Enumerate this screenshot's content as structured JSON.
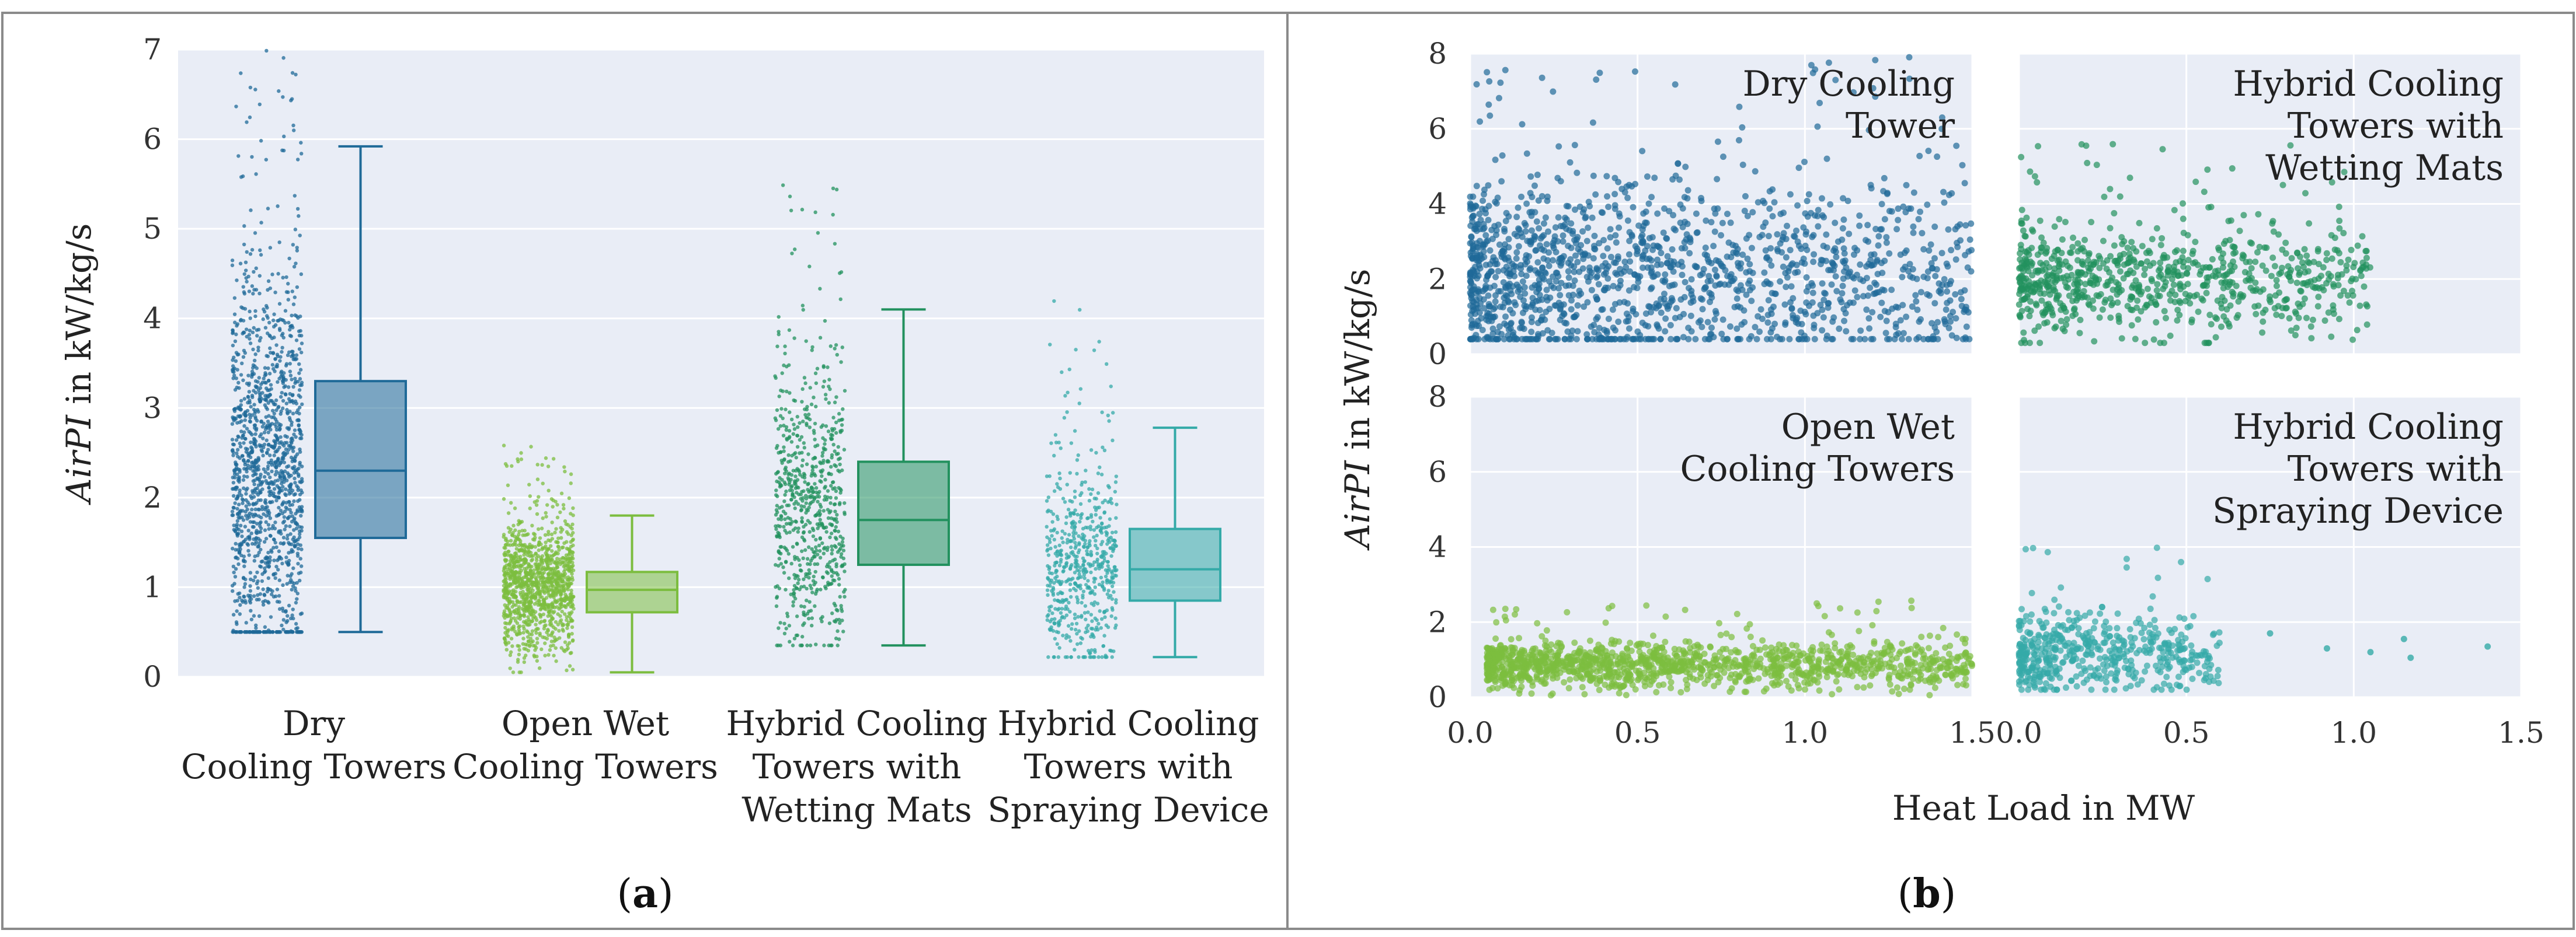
{
  "colors": {
    "background": "#e9edf6",
    "grid": "#ffffff",
    "dry": "#1f6a98",
    "open_wet": "#7cbd3f",
    "wetting_mats": "#22915e",
    "spraying": "#34aaa8",
    "border": "#8a8a8a"
  },
  "panels": {
    "a_label": "(a)",
    "b_label": "(b)",
    "a_letter": "a",
    "b_letter": "b"
  },
  "chart_data": [
    {
      "type": "box",
      "panel": "a",
      "ylabel": "AirPI in kW/kg/s",
      "ylabel_italic": "AirPI",
      "ylabel_rest": " in kW/kg/s",
      "ylim": [
        0,
        7
      ],
      "yticks": [
        "0",
        "1",
        "2",
        "3",
        "4",
        "5",
        "6",
        "7"
      ],
      "grid": true,
      "categories": [
        {
          "lines": [
            "Dry",
            "Cooling Towers"
          ],
          "color": "dry",
          "box": {
            "whisker_low": 0.5,
            "q1": 1.55,
            "median": 2.3,
            "q3": 3.3,
            "whisker_high": 5.92
          },
          "strip": {
            "min": 0.5,
            "max": 7.0,
            "count": 1400,
            "center": 2.2,
            "spread": 1.1
          }
        },
        {
          "lines": [
            "Open Wet",
            "Cooling Towers"
          ],
          "color": "open_wet",
          "box": {
            "whisker_low": 0.05,
            "q1": 0.72,
            "median": 0.97,
            "q3": 1.17,
            "whisker_high": 1.8
          },
          "strip": {
            "min": 0.05,
            "max": 2.6,
            "count": 1200,
            "center": 1.0,
            "spread": 0.35
          }
        },
        {
          "lines": [
            "Hybrid Cooling",
            "Towers with",
            "Wetting Mats"
          ],
          "color": "wetting_mats",
          "box": {
            "whisker_low": 0.35,
            "q1": 1.25,
            "median": 1.75,
            "q3": 2.4,
            "whisker_high": 4.1
          },
          "strip": {
            "min": 0.35,
            "max": 5.5,
            "count": 700,
            "center": 1.8,
            "spread": 0.8
          }
        },
        {
          "lines": [
            "Hybrid Cooling",
            "Towers with",
            "Spraying Device"
          ],
          "color": "spraying",
          "box": {
            "whisker_low": 0.22,
            "q1": 0.85,
            "median": 1.2,
            "q3": 1.65,
            "whisker_high": 2.78
          },
          "strip": {
            "min": 0.22,
            "max": 4.2,
            "count": 600,
            "center": 1.2,
            "spread": 0.55
          }
        }
      ]
    },
    {
      "type": "scatter",
      "panel": "b",
      "xlabel": "Heat Load in MW",
      "ylabel": "AirPI in kW/kg/s",
      "ylabel_italic": "AirPI",
      "ylabel_rest": " in kW/kg/s",
      "xlim": [
        0,
        1.5
      ],
      "ylim": [
        0,
        8
      ],
      "xticks": [
        "0.0",
        "0.5",
        "1.0",
        "1.5"
      ],
      "yticks": [
        "0",
        "2",
        "4",
        "6",
        "8"
      ],
      "grid": true,
      "subplots": [
        {
          "lines": [
            "Dry Cooling",
            "Tower"
          ],
          "color": "dry",
          "row": 0,
          "col": 0,
          "x_range": [
            0.0,
            1.5
          ],
          "y_range": [
            0.4,
            8.0
          ],
          "count": 1500,
          "y_center": 2.0,
          "y_spread": 1.3
        },
        {
          "lines": [
            "Hybrid Cooling",
            "Towers with",
            "Wetting Mats"
          ],
          "color": "wetting_mats",
          "row": 0,
          "col": 1,
          "x_range": [
            0.0,
            1.05
          ],
          "y_range": [
            0.3,
            5.6
          ],
          "count": 800,
          "y_center": 1.9,
          "y_spread": 0.7
        },
        {
          "lines": [
            "Open Wet",
            "Cooling Towers"
          ],
          "color": "open_wet",
          "row": 1,
          "col": 0,
          "x_range": [
            0.05,
            1.5
          ],
          "y_range": [
            0.05,
            2.6
          ],
          "count": 1300,
          "y_center": 0.85,
          "y_spread": 0.3
        },
        {
          "lines": [
            "Hybrid Cooling",
            "Towers with",
            "Spraying Device"
          ],
          "color": "spraying",
          "row": 1,
          "col": 1,
          "x_range": [
            0.0,
            0.6
          ],
          "y_range": [
            0.2,
            4.2
          ],
          "count": 500,
          "y_center": 1.1,
          "y_spread": 0.55
        }
      ],
      "outliers_spraying": [
        [
          0.75,
          1.7
        ],
        [
          0.92,
          1.3
        ],
        [
          1.05,
          1.2
        ],
        [
          1.15,
          1.55
        ],
        [
          1.17,
          1.05
        ],
        [
          1.4,
          1.35
        ]
      ]
    }
  ]
}
